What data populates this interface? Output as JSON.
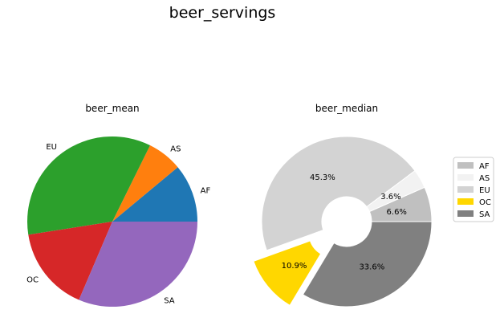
{
  "suptitle": "beer_servings",
  "chart_data": [
    {
      "type": "pie",
      "title": "beer_mean",
      "labels": [
        "AF",
        "AS",
        "EU",
        "OC",
        "SA"
      ],
      "values": [
        61.47,
        37.05,
        193.78,
        89.69,
        175.08
      ],
      "colors": [
        "#1f77b4",
        "#ff7f0e",
        "#2ca02c",
        "#d62728",
        "#9467bd"
      ],
      "autopct": false,
      "legend": false
    },
    {
      "type": "pie",
      "title": "beer_median",
      "style": "donut",
      "labels": [
        "AF",
        "AS",
        "EU",
        "OC",
        "SA"
      ],
      "values": [
        6.6,
        3.6,
        45.3,
        10.9,
        33.6
      ],
      "percent_labels": [
        "6.6%",
        "3.6%",
        "45.3%",
        "10.9%",
        "33.6%"
      ],
      "colors": [
        "#c0c0c0",
        "#f2f2f2",
        "#d3d3d3",
        "#ffd700",
        "#808080"
      ],
      "exploded": [
        "OC"
      ],
      "legend": {
        "placement": "right",
        "entries": [
          "AF",
          "AS",
          "EU",
          "OC",
          "SA"
        ]
      }
    }
  ]
}
